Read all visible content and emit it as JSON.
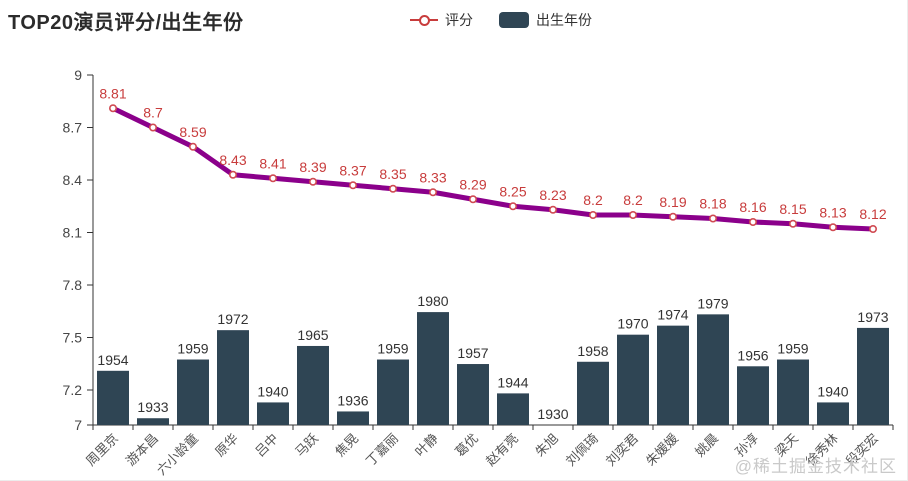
{
  "header": {
    "title": "TOP20演员评分/出生年份"
  },
  "legend": {
    "items": [
      {
        "label": "评分",
        "type": "line",
        "color": "#c83c3c"
      },
      {
        "label": "出生年份",
        "type": "bar",
        "color": "#2f4554"
      }
    ]
  },
  "chart_data": {
    "type": "combo",
    "title": "TOP20演员评分/出生年份",
    "categories": [
      "周里京",
      "游本昌",
      "六小龄童",
      "原华",
      "吕中",
      "马跃",
      "焦晃",
      "丁嘉丽",
      "叶静",
      "葛优",
      "赵有亮",
      "朱旭",
      "刘佩琦",
      "刘奕君",
      "朱媛媛",
      "姚晨",
      "孙淳",
      "梁天",
      "徐秀林",
      "段奕宏"
    ],
    "series": [
      {
        "name": "评分",
        "type": "line",
        "color": "#8B008B",
        "marker_fill": "#ffffff",
        "marker_border": "#d04a52",
        "label_color": "#c83c3c",
        "values": [
          8.81,
          8.7,
          8.59,
          8.43,
          8.41,
          8.39,
          8.37,
          8.35,
          8.33,
          8.29,
          8.25,
          8.23,
          8.2,
          8.2,
          8.19,
          8.18,
          8.16,
          8.15,
          8.13,
          8.12
        ]
      },
      {
        "name": "出生年份",
        "type": "bar",
        "color": "#2f4554",
        "label_color": "#333333",
        "values": [
          1954,
          1933,
          1959,
          1972,
          1940,
          1965,
          1936,
          1959,
          1980,
          1957,
          1944,
          1930,
          1958,
          1970,
          1974,
          1979,
          1956,
          1959,
          1940,
          1973
        ]
      }
    ],
    "yaxis": {
      "ticks": [
        7,
        7.2,
        7.5,
        7.8,
        8.1,
        8.4,
        8.7,
        9
      ],
      "range": [
        7,
        9
      ]
    },
    "bar_axis_range_estimate": [
      1930,
      2085
    ],
    "grid": false,
    "legend_position": "top-center",
    "axis_color": "#333333",
    "ytick_label_color": "#464646",
    "xtick_label_color": "#555555"
  },
  "watermark": {
    "text": "@稀土掘金技术社区"
  }
}
